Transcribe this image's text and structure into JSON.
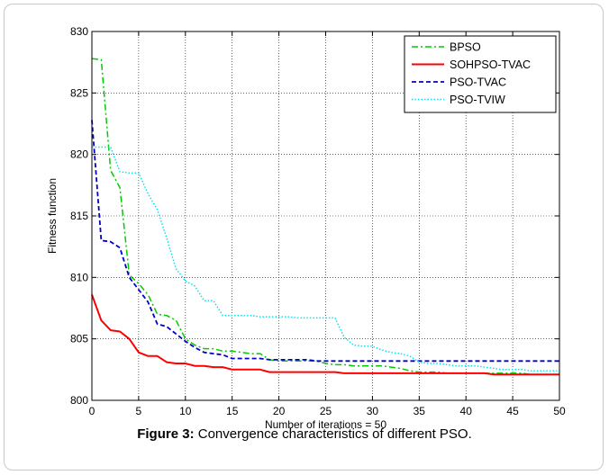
{
  "caption": {
    "label": "Figure 3:",
    "text": " Convergence characteristics of different PSO."
  },
  "chart_data": {
    "type": "line",
    "title": "",
    "xlabel": "Number of iterations = 50",
    "ylabel": "Fitness function",
    "xlim": [
      0,
      50
    ],
    "ylim": [
      800,
      830
    ],
    "xticks": [
      0,
      5,
      10,
      15,
      20,
      25,
      30,
      35,
      40,
      45,
      50
    ],
    "yticks": [
      800,
      805,
      810,
      815,
      820,
      825,
      830
    ],
    "grid": true,
    "legend_position": "top-right",
    "series": [
      {
        "name": "BPSO",
        "color": "#00cc00",
        "dash": "dashdot",
        "x": [
          0,
          1,
          2,
          3,
          4,
          5,
          6,
          7,
          8,
          9,
          10,
          11,
          12,
          13,
          14,
          15,
          16,
          17,
          18,
          19,
          20,
          21,
          22,
          23,
          24,
          25,
          26,
          27,
          28,
          29,
          30,
          31,
          32,
          33,
          34,
          35,
          36,
          37,
          38,
          39,
          40,
          41,
          42,
          43,
          44,
          45,
          46,
          47,
          48,
          49,
          50
        ],
        "y": [
          827.8,
          827.7,
          818.7,
          817.3,
          810.2,
          809.5,
          808.6,
          807.0,
          806.9,
          806.5,
          805.0,
          804.5,
          804.2,
          804.2,
          804.0,
          804.0,
          803.9,
          803.8,
          803.8,
          803.3,
          803.2,
          803.2,
          803.2,
          803.2,
          803.2,
          803.0,
          802.9,
          802.9,
          802.8,
          802.8,
          802.8,
          802.8,
          802.7,
          802.6,
          802.4,
          802.3,
          802.3,
          802.3,
          802.2,
          802.2,
          802.2,
          802.2,
          802.2,
          802.2,
          802.2,
          802.2,
          802.2,
          802.1,
          802.1,
          802.1,
          802.1
        ]
      },
      {
        "name": "SOHPSO-TVAC",
        "color": "#ff0000",
        "dash": "solid",
        "x": [
          0,
          1,
          2,
          3,
          4,
          5,
          6,
          7,
          8,
          9,
          10,
          11,
          12,
          13,
          14,
          15,
          16,
          17,
          18,
          19,
          20,
          21,
          22,
          23,
          24,
          25,
          26,
          27,
          28,
          29,
          30,
          31,
          32,
          33,
          34,
          35,
          36,
          37,
          38,
          39,
          40,
          41,
          42,
          43,
          44,
          45,
          46,
          47,
          48,
          49,
          50
        ],
        "y": [
          808.6,
          806.5,
          805.7,
          805.6,
          805.0,
          803.9,
          803.6,
          803.6,
          803.1,
          803.0,
          803.0,
          802.8,
          802.8,
          802.7,
          802.7,
          802.5,
          802.5,
          802.5,
          802.5,
          802.3,
          802.3,
          802.3,
          802.3,
          802.3,
          802.3,
          802.3,
          802.3,
          802.2,
          802.2,
          802.2,
          802.2,
          802.2,
          802.2,
          802.2,
          802.2,
          802.2,
          802.2,
          802.2,
          802.2,
          802.2,
          802.2,
          802.2,
          802.2,
          802.1,
          802.1,
          802.1,
          802.1,
          802.1,
          802.1,
          802.1,
          802.1
        ]
      },
      {
        "name": "PSO-TVAC",
        "color": "#0000cc",
        "dash": "dashed",
        "x": [
          0,
          1,
          2,
          3,
          4,
          5,
          6,
          7,
          8,
          9,
          10,
          11,
          12,
          13,
          14,
          15,
          16,
          17,
          18,
          19,
          20,
          21,
          22,
          23,
          24,
          25,
          26,
          27,
          28,
          29,
          30,
          31,
          32,
          33,
          34,
          35,
          36,
          37,
          38,
          39,
          40,
          41,
          42,
          43,
          44,
          45,
          46,
          47,
          48,
          49,
          50
        ],
        "y": [
          822.8,
          813.0,
          812.9,
          812.4,
          810.0,
          809.0,
          808.0,
          806.2,
          806.0,
          805.4,
          804.8,
          804.3,
          803.9,
          803.8,
          803.7,
          803.4,
          803.4,
          803.4,
          803.4,
          803.3,
          803.3,
          803.3,
          803.3,
          803.3,
          803.2,
          803.2,
          803.2,
          803.2,
          803.2,
          803.2,
          803.2,
          803.2,
          803.2,
          803.2,
          803.2,
          803.2,
          803.2,
          803.2,
          803.2,
          803.2,
          803.2,
          803.2,
          803.2,
          803.2,
          803.2,
          803.2,
          803.2,
          803.2,
          803.2,
          803.2,
          803.2
        ]
      },
      {
        "name": "PSO-TVIW",
        "color": "#00e5ee",
        "dash": "dotted",
        "x": [
          0,
          1,
          2,
          3,
          4,
          5,
          6,
          7,
          8,
          9,
          10,
          11,
          12,
          13,
          14,
          15,
          16,
          17,
          18,
          19,
          20,
          21,
          22,
          23,
          24,
          25,
          26,
          27,
          28,
          29,
          30,
          31,
          32,
          33,
          34,
          35,
          36,
          37,
          38,
          39,
          40,
          41,
          42,
          43,
          44,
          45,
          46,
          47,
          48,
          49,
          50
        ],
        "y": [
          820.6,
          820.6,
          820.6,
          818.6,
          818.5,
          818.5,
          816.8,
          815.5,
          813.2,
          810.7,
          809.7,
          809.3,
          808.1,
          808.1,
          806.9,
          806.9,
          806.9,
          806.9,
          806.8,
          806.8,
          806.8,
          806.8,
          806.7,
          806.7,
          806.7,
          806.7,
          806.7,
          805.1,
          804.5,
          804.4,
          804.4,
          804.1,
          803.9,
          803.8,
          803.6,
          803.1,
          803.0,
          803.0,
          802.9,
          802.8,
          802.8,
          802.8,
          802.7,
          802.6,
          802.5,
          802.5,
          802.5,
          802.4,
          802.4,
          802.4,
          802.4
        ]
      }
    ]
  }
}
